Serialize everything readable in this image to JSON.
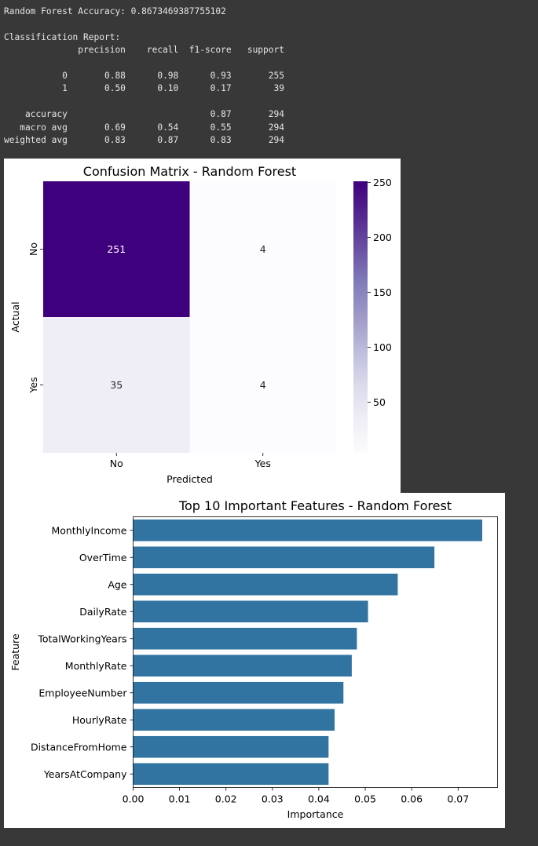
{
  "console": {
    "lines": [
      "Random Forest Accuracy: 0.8673469387755102",
      "",
      "Classification Report:",
      "              precision    recall  f1-score   support",
      "",
      "           0       0.88      0.98      0.93       255",
      "           1       0.50      0.10      0.17        39",
      "",
      "    accuracy                           0.87       294",
      "   macro avg       0.69      0.54      0.55       294",
      "weighted avg       0.83      0.87      0.83       294"
    ]
  },
  "chart_data": [
    {
      "type": "heatmap",
      "title": "Confusion Matrix - Random Forest",
      "xlabel": "Predicted",
      "ylabel": "Actual",
      "x_categories": [
        "No",
        "Yes"
      ],
      "y_categories": [
        "No",
        "Yes"
      ],
      "values": [
        [
          251,
          4
        ],
        [
          35,
          4
        ]
      ],
      "colormap": "Purples",
      "colorbar": {
        "ticks": [
          50,
          100,
          150,
          200,
          250
        ],
        "range": [
          4,
          251
        ]
      }
    },
    {
      "type": "bar",
      "orientation": "horizontal",
      "title": "Top 10 Important Features - Random Forest",
      "xlabel": "Importance",
      "ylabel": "Feature",
      "categories": [
        "MonthlyIncome",
        "OverTime",
        "Age",
        "DailyRate",
        "TotalWorkingYears",
        "MonthlyRate",
        "EmployeeNumber",
        "HourlyRate",
        "DistanceFromHome",
        "YearsAtCompany"
      ],
      "values": [
        0.0752,
        0.0649,
        0.057,
        0.0506,
        0.0482,
        0.0471,
        0.0453,
        0.0434,
        0.0421,
        0.0421
      ],
      "xlim": [
        0,
        0.0785
      ],
      "xticks": [
        "0.00",
        "0.01",
        "0.02",
        "0.03",
        "0.04",
        "0.05",
        "0.06",
        "0.07"
      ],
      "color": "#3274a1"
    }
  ]
}
